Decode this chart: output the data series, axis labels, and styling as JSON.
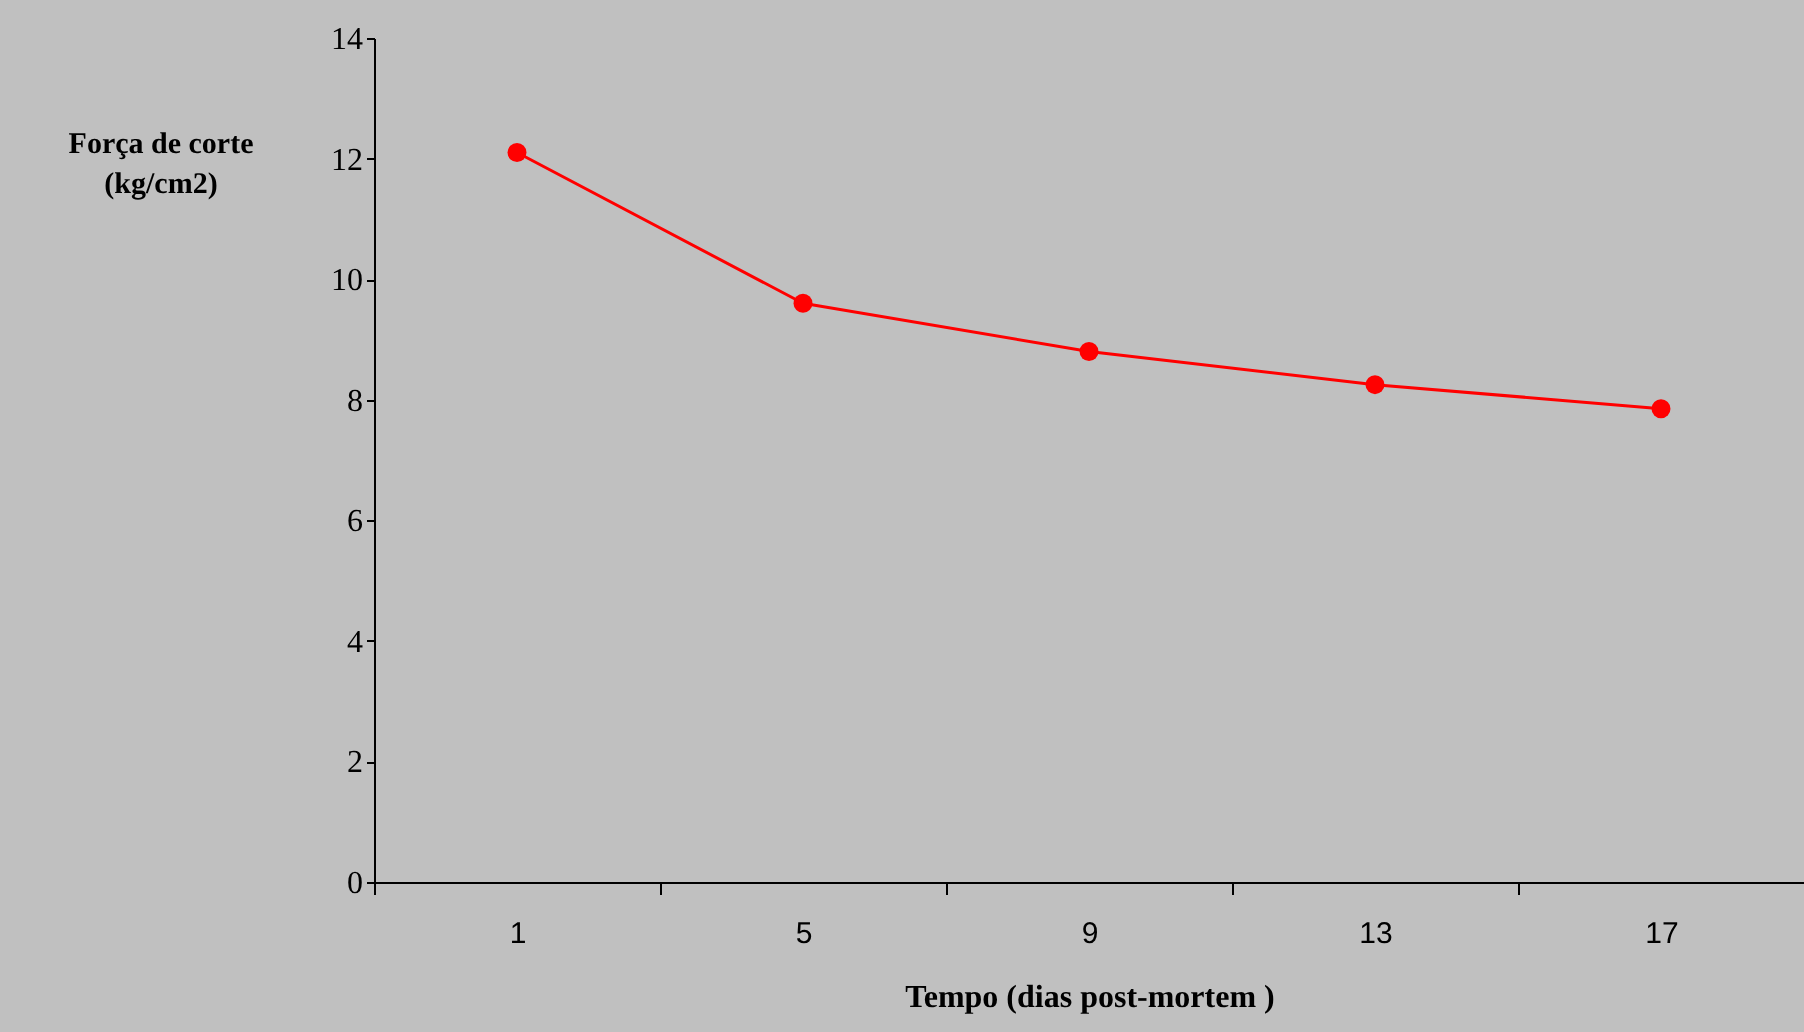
{
  "chart_data": {
    "type": "line",
    "xlabel": "Tempo (dias post-mortem )",
    "ylabel": "Força de corte\n(kg/cm2)",
    "categories": [
      "1",
      "5",
      "9",
      "13",
      "17"
    ],
    "series": [
      {
        "color": "#ff0000",
        "values": [
          12.1,
          9.6,
          8.8,
          8.25,
          7.85
        ]
      }
    ],
    "ylim": [
      0,
      14
    ],
    "yticks": [
      0,
      2,
      4,
      6,
      8,
      10,
      12,
      14
    ],
    "grid": false,
    "marker": "circle",
    "line_style": "solid"
  }
}
